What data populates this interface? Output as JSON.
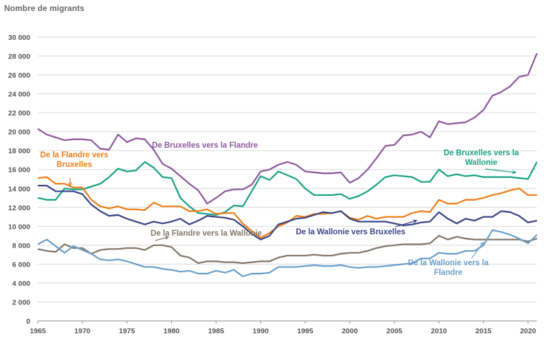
{
  "chart_data": {
    "type": "line",
    "title": "",
    "ylabel": "Nombre de migrants",
    "xlabel": "",
    "xlim": [
      1965,
      2021
    ],
    "ylim": [
      0,
      30000
    ],
    "xticks": [
      1965,
      1970,
      1975,
      1980,
      1985,
      1990,
      1995,
      2000,
      2005,
      2010,
      2015,
      2020
    ],
    "yticks": [
      0,
      2000,
      4000,
      6000,
      8000,
      10000,
      12000,
      14000,
      16000,
      18000,
      20000,
      22000,
      24000,
      26000,
      28000,
      30000
    ],
    "ytick_labels": [
      "0",
      "2 000",
      "4 000",
      "6 000",
      "8 000",
      "10 000",
      "12 000",
      "14 000",
      "16 000",
      "18 000",
      "20 000",
      "22 000",
      "24 000",
      "26 000",
      "28 000",
      "30 000"
    ],
    "grid": true,
    "x": [
      1965,
      1966,
      1967,
      1968,
      1969,
      1970,
      1971,
      1972,
      1973,
      1974,
      1975,
      1976,
      1977,
      1978,
      1979,
      1980,
      1981,
      1982,
      1983,
      1984,
      1985,
      1986,
      1987,
      1988,
      1989,
      1990,
      1991,
      1992,
      1993,
      1994,
      1995,
      1996,
      1997,
      1998,
      1999,
      2000,
      2001,
      2002,
      2003,
      2004,
      2005,
      2006,
      2007,
      2008,
      2009,
      2010,
      2011,
      2012,
      2013,
      2014,
      2015,
      2016,
      2017,
      2018,
      2019,
      2020,
      2021
    ],
    "series": [
      {
        "name": "De Bruxelles vers la Flandre",
        "color": "#8e5a9e",
        "values": [
          20300,
          19700,
          19400,
          19100,
          19200,
          19200,
          19100,
          18200,
          18100,
          19700,
          18900,
          19300,
          19200,
          18100,
          16600,
          16100,
          15300,
          14500,
          13800,
          12400,
          13000,
          13700,
          13900,
          13900,
          14400,
          15800,
          16000,
          16500,
          16800,
          16500,
          15800,
          15700,
          15600,
          15600,
          15700,
          14600,
          15100,
          16000,
          17200,
          18500,
          18600,
          19600,
          19700,
          20000,
          19400,
          21100,
          20800,
          20900,
          21000,
          21500,
          22300,
          23800,
          24200,
          24800,
          25800,
          26000,
          28300
        ]
      },
      {
        "name": "De Bruxelles vers la Wallonie",
        "color": "#1aa383",
        "values": [
          13000,
          12800,
          12800,
          14000,
          13900,
          13900,
          14200,
          14500,
          15200,
          16100,
          15800,
          15900,
          16800,
          16200,
          15200,
          15100,
          13000,
          12100,
          11400,
          11300,
          11200,
          11500,
          12200,
          12100,
          13700,
          15300,
          14900,
          15800,
          15400,
          15000,
          14000,
          13300,
          13300,
          13300,
          13400,
          12900,
          13200,
          13700,
          14400,
          15200,
          15400,
          15300,
          15200,
          14700,
          14700,
          16000,
          15300,
          15500,
          15300,
          15400,
          15200,
          15200,
          15200,
          15200,
          15100,
          15000,
          16800
        ]
      },
      {
        "name": "De la Flandre vers Bruxelles",
        "color": "#ee7f1a",
        "values": [
          15100,
          15200,
          14500,
          14500,
          14100,
          14100,
          12800,
          12100,
          11900,
          12100,
          11800,
          11800,
          11700,
          12500,
          12100,
          12100,
          12100,
          11600,
          11600,
          11800,
          11300,
          11400,
          11400,
          10300,
          9500,
          8800,
          9300,
          10000,
          10400,
          11100,
          11000,
          11300,
          11300,
          11400,
          11600,
          10900,
          10700,
          11100,
          10800,
          11000,
          11000,
          11000,
          11400,
          11600,
          11500,
          12800,
          12400,
          12400,
          12800,
          12800,
          13000,
          13300,
          13500,
          13800,
          14000,
          13300,
          13300
        ]
      },
      {
        "name": "De la Wallonie vers Bruxelles",
        "color": "#3b4687",
        "values": [
          14300,
          14300,
          13700,
          13700,
          13700,
          13400,
          12300,
          11600,
          11100,
          11200,
          10800,
          10500,
          10200,
          10500,
          10300,
          10500,
          10800,
          10200,
          10600,
          11100,
          11000,
          10900,
          10700,
          10000,
          9200,
          8600,
          9000,
          10200,
          10500,
          10800,
          10900,
          11200,
          11500,
          11400,
          11600,
          10800,
          10500,
          10500,
          10500,
          10500,
          10300,
          10100,
          10200,
          10400,
          10500,
          11500,
          10800,
          10300,
          10800,
          10600,
          11000,
          11000,
          11600,
          11500,
          11100,
          10400,
          10600
        ]
      },
      {
        "name": "De la Flandre vers la Wallonie",
        "color": "#857766",
        "values": [
          7600,
          7400,
          7300,
          8100,
          7700,
          7700,
          7100,
          7500,
          7600,
          7600,
          7700,
          7700,
          7500,
          8000,
          8000,
          7800,
          6900,
          6700,
          6100,
          6300,
          6300,
          6200,
          6200,
          6100,
          6200,
          6300,
          6300,
          6700,
          6900,
          6900,
          6900,
          7000,
          6900,
          6900,
          7100,
          7200,
          7200,
          7400,
          7700,
          7900,
          8000,
          8100,
          8100,
          8100,
          8200,
          9000,
          8600,
          8900,
          8700,
          8600,
          8600,
          8600,
          8600,
          8600,
          8600,
          8400,
          8700
        ]
      },
      {
        "name": "De la Wallonie vers la Flandre",
        "color": "#6ca1cc",
        "values": [
          8100,
          8600,
          7900,
          7200,
          7900,
          7500,
          7100,
          6500,
          6400,
          6500,
          6300,
          6000,
          5700,
          5700,
          5500,
          5400,
          5200,
          5300,
          5000,
          5000,
          5300,
          5100,
          5400,
          4700,
          5000,
          5000,
          5100,
          5700,
          5700,
          5700,
          5800,
          5900,
          5800,
          5800,
          5900,
          5700,
          5600,
          5700,
          5700,
          5800,
          5900,
          6000,
          6100,
          6600,
          6600,
          7200,
          7100,
          7100,
          7400,
          7400,
          8000,
          9600,
          9400,
          9100,
          8700,
          8200,
          9100
        ]
      }
    ],
    "annotations": [
      {
        "series": 0,
        "lines": [
          "De Bruxelles vers la Flandre"
        ]
      },
      {
        "series": 1,
        "lines": [
          "De Bruxelles vers la",
          "Wallonie"
        ]
      },
      {
        "series": 2,
        "lines": [
          "De la Flandre vers",
          "Bruxelles"
        ]
      },
      {
        "series": 3,
        "lines": [
          "De la Wallonie vers Bruxelles"
        ]
      },
      {
        "series": 4,
        "lines": [
          "De la Flandre vers la Wallonie"
        ]
      },
      {
        "series": 5,
        "lines": [
          "De la Wallonie vers la",
          "Flandre"
        ]
      }
    ]
  }
}
